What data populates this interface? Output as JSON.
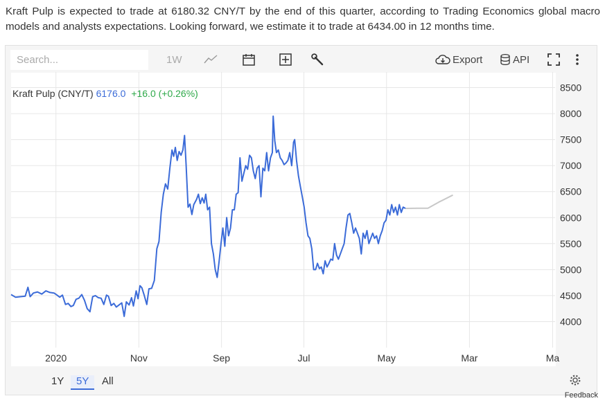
{
  "intro_text": "Kraft Pulp is expected to trade at 6180.32 CNY/T by the end of this quarter, according to Trading Economics global macro models and analysts expectations. Looking forward, we estimate it to trade at 6434.00 in 12 months time.",
  "toolbar": {
    "search_placeholder": "Search...",
    "range_label": "1W",
    "export_label": "Export",
    "api_label": "API"
  },
  "legend": {
    "name": "Kraft Pulp (CNY/T)",
    "last": "6176.0",
    "change": "+16.0 (+0.26%)"
  },
  "ranges": [
    "1Y",
    "5Y",
    "All"
  ],
  "active_range": "5Y",
  "feedback_label": "Feedback",
  "colors": {
    "series": "#3b6bd8",
    "forecast": "#c8c8c8",
    "positive": "#2fa94a",
    "grid": "#e6e6e6"
  },
  "chart_data": {
    "type": "line",
    "y_ticks": [
      "8500",
      "8000",
      "7500",
      "7000",
      "6500",
      "6000",
      "5500",
      "5000",
      "4500",
      "4000"
    ],
    "y_tick_values": [
      8500,
      8000,
      7500,
      7000,
      6500,
      6000,
      5500,
      5000,
      4500,
      4000
    ],
    "ylim": [
      3500,
      8800
    ],
    "x_tick_labels": [
      "2020",
      "Nov",
      "Sep",
      "Jul",
      "May",
      "Mar",
      "Ma"
    ],
    "x_tick_dates": [
      "2020-01-01",
      "2020-11-01",
      "2021-09-01",
      "2022-07-01",
      "2023-05-01",
      "2024-03-01",
      "2025-01-01"
    ],
    "xlim": [
      "2019-07-20",
      "2025-01-10"
    ],
    "grid": true,
    "series": [
      {
        "name": "Kraft Pulp (CNY/T)",
        "points": [
          [
            "2019-07-20",
            4520
          ],
          [
            "2019-08-05",
            4470
          ],
          [
            "2019-08-25",
            4480
          ],
          [
            "2019-09-10",
            4490
          ],
          [
            "2019-09-20",
            4660
          ],
          [
            "2019-09-28",
            4480
          ],
          [
            "2019-10-10",
            4550
          ],
          [
            "2019-10-25",
            4570
          ],
          [
            "2019-11-10",
            4530
          ],
          [
            "2019-11-25",
            4590
          ],
          [
            "2019-12-10",
            4560
          ],
          [
            "2019-12-25",
            4550
          ],
          [
            "2020-01-05",
            4510
          ],
          [
            "2020-01-15",
            4470
          ],
          [
            "2020-01-25",
            4510
          ],
          [
            "2020-02-05",
            4330
          ],
          [
            "2020-02-15",
            4350
          ],
          [
            "2020-02-25",
            4290
          ],
          [
            "2020-03-05",
            4310
          ],
          [
            "2020-03-15",
            4430
          ],
          [
            "2020-03-25",
            4450
          ],
          [
            "2020-04-05",
            4520
          ],
          [
            "2020-04-15",
            4410
          ],
          [
            "2020-04-25",
            4250
          ],
          [
            "2020-05-05",
            4190
          ],
          [
            "2020-05-15",
            4480
          ],
          [
            "2020-05-25",
            4500
          ],
          [
            "2020-06-05",
            4460
          ],
          [
            "2020-06-15",
            4450
          ],
          [
            "2020-06-25",
            4330
          ],
          [
            "2020-07-05",
            4510
          ],
          [
            "2020-07-12",
            4490
          ],
          [
            "2020-07-22",
            4310
          ],
          [
            "2020-08-01",
            4350
          ],
          [
            "2020-08-10",
            4280
          ],
          [
            "2020-08-20",
            4320
          ],
          [
            "2020-08-30",
            4360
          ],
          [
            "2020-09-08",
            4100
          ],
          [
            "2020-09-16",
            4380
          ],
          [
            "2020-09-26",
            4320
          ],
          [
            "2020-10-05",
            4460
          ],
          [
            "2020-10-12",
            4300
          ],
          [
            "2020-10-22",
            4590
          ],
          [
            "2020-10-29",
            4440
          ],
          [
            "2020-11-05",
            4690
          ],
          [
            "2020-11-12",
            4650
          ],
          [
            "2020-11-20",
            4520
          ],
          [
            "2020-11-30",
            4330
          ],
          [
            "2020-12-08",
            4630
          ],
          [
            "2020-12-18",
            4640
          ],
          [
            "2020-12-28",
            4790
          ],
          [
            "2021-01-06",
            5400
          ],
          [
            "2021-01-14",
            5540
          ],
          [
            "2021-01-22",
            6100
          ],
          [
            "2021-01-30",
            6450
          ],
          [
            "2021-02-07",
            6650
          ],
          [
            "2021-02-15",
            6550
          ],
          [
            "2021-02-23",
            6950
          ],
          [
            "2021-03-03",
            7300
          ],
          [
            "2021-03-09",
            7180
          ],
          [
            "2021-03-15",
            7350
          ],
          [
            "2021-03-22",
            7100
          ],
          [
            "2021-03-29",
            7270
          ],
          [
            "2021-04-05",
            7200
          ],
          [
            "2021-04-12",
            7300
          ],
          [
            "2021-04-18",
            7580
          ],
          [
            "2021-04-24",
            7000
          ],
          [
            "2021-05-01",
            6200
          ],
          [
            "2021-05-08",
            6260
          ],
          [
            "2021-05-15",
            6060
          ],
          [
            "2021-05-22",
            6250
          ],
          [
            "2021-06-01",
            6350
          ],
          [
            "2021-06-08",
            6450
          ],
          [
            "2021-06-15",
            6270
          ],
          [
            "2021-06-22",
            6380
          ],
          [
            "2021-06-29",
            6280
          ],
          [
            "2021-07-05",
            6450
          ],
          [
            "2021-07-12",
            6150
          ],
          [
            "2021-07-19",
            6200
          ],
          [
            "2021-07-26",
            5500
          ],
          [
            "2021-08-02",
            5300
          ],
          [
            "2021-08-09",
            5000
          ],
          [
            "2021-08-16",
            4850
          ],
          [
            "2021-08-23",
            5150
          ],
          [
            "2021-08-30",
            5500
          ],
          [
            "2021-09-06",
            5800
          ],
          [
            "2021-09-13",
            5450
          ],
          [
            "2021-09-20",
            6000
          ],
          [
            "2021-09-27",
            5650
          ],
          [
            "2021-10-04",
            5800
          ],
          [
            "2021-10-11",
            6150
          ],
          [
            "2021-10-18",
            6150
          ],
          [
            "2021-10-25",
            6450
          ],
          [
            "2021-11-01",
            6480
          ],
          [
            "2021-11-08",
            7150
          ],
          [
            "2021-11-15",
            6700
          ],
          [
            "2021-11-22",
            6850
          ],
          [
            "2021-11-29",
            7000
          ],
          [
            "2021-12-06",
            6930
          ],
          [
            "2021-12-13",
            7200
          ],
          [
            "2021-12-20",
            7150
          ],
          [
            "2021-12-27",
            6900
          ],
          [
            "2022-01-03",
            6750
          ],
          [
            "2022-01-10",
            6950
          ],
          [
            "2022-01-17",
            7000
          ],
          [
            "2022-01-24",
            6400
          ],
          [
            "2022-01-31",
            6950
          ],
          [
            "2022-02-07",
            6900
          ],
          [
            "2022-02-14",
            7250
          ],
          [
            "2022-02-21",
            6900
          ],
          [
            "2022-02-28",
            7150
          ],
          [
            "2022-03-07",
            7250
          ],
          [
            "2022-03-10",
            7950
          ],
          [
            "2022-03-16",
            7480
          ],
          [
            "2022-03-22",
            7250
          ],
          [
            "2022-03-29",
            7300
          ],
          [
            "2022-04-05",
            7150
          ],
          [
            "2022-04-12",
            7100
          ],
          [
            "2022-04-19",
            7020
          ],
          [
            "2022-04-26",
            7050
          ],
          [
            "2022-05-03",
            7100
          ],
          [
            "2022-05-10",
            7250
          ],
          [
            "2022-05-17",
            7000
          ],
          [
            "2022-05-24",
            7450
          ],
          [
            "2022-05-28",
            7500
          ],
          [
            "2022-06-04",
            7100
          ],
          [
            "2022-06-11",
            6800
          ],
          [
            "2022-06-18",
            6600
          ],
          [
            "2022-06-25",
            6400
          ],
          [
            "2022-07-02",
            6200
          ],
          [
            "2022-07-09",
            5900
          ],
          [
            "2022-07-16",
            5650
          ],
          [
            "2022-07-23",
            5600
          ],
          [
            "2022-07-30",
            5400
          ],
          [
            "2022-08-06",
            5000
          ],
          [
            "2022-08-13",
            5000
          ],
          [
            "2022-08-20",
            5120
          ],
          [
            "2022-08-27",
            5020
          ],
          [
            "2022-09-03",
            5050
          ],
          [
            "2022-09-10",
            4920
          ],
          [
            "2022-09-17",
            5170
          ],
          [
            "2022-09-24",
            5050
          ],
          [
            "2022-10-01",
            5120
          ],
          [
            "2022-10-08",
            5200
          ],
          [
            "2022-10-15",
            5180
          ],
          [
            "2022-10-22",
            5500
          ],
          [
            "2022-10-29",
            5280
          ],
          [
            "2022-11-05",
            5200
          ],
          [
            "2022-11-12",
            5300
          ],
          [
            "2022-11-19",
            5400
          ],
          [
            "2022-11-26",
            5500
          ],
          [
            "2022-12-03",
            5800
          ],
          [
            "2022-12-10",
            6050
          ],
          [
            "2022-12-17",
            6080
          ],
          [
            "2022-12-24",
            5900
          ],
          [
            "2022-12-31",
            5700
          ],
          [
            "2023-01-07",
            5800
          ],
          [
            "2023-01-14",
            5700
          ],
          [
            "2023-01-21",
            5600
          ],
          [
            "2023-01-28",
            5300
          ],
          [
            "2023-02-04",
            5700
          ],
          [
            "2023-02-11",
            5600
          ],
          [
            "2023-02-18",
            5750
          ],
          [
            "2023-02-25",
            5500
          ],
          [
            "2023-03-04",
            5600
          ],
          [
            "2023-03-11",
            5700
          ],
          [
            "2023-03-18",
            5600
          ],
          [
            "2023-03-25",
            5650
          ],
          [
            "2023-04-01",
            5500
          ],
          [
            "2023-04-08",
            5650
          ],
          [
            "2023-04-15",
            5750
          ],
          [
            "2023-04-22",
            5900
          ],
          [
            "2023-04-29",
            5950
          ],
          [
            "2023-05-06",
            6150
          ],
          [
            "2023-05-13",
            6050
          ],
          [
            "2023-05-20",
            6250
          ],
          [
            "2023-05-27",
            6100
          ],
          [
            "2023-06-03",
            6200
          ],
          [
            "2023-06-10",
            6050
          ],
          [
            "2023-06-17",
            6250
          ],
          [
            "2023-06-24",
            6100
          ],
          [
            "2023-07-01",
            6200
          ],
          [
            "2023-07-10",
            6176
          ]
        ]
      }
    ],
    "forecast": [
      [
        "2023-07-10",
        6176
      ],
      [
        "2023-08-20",
        6180
      ],
      [
        "2023-09-30",
        6180
      ],
      [
        "2023-11-10",
        6300
      ],
      [
        "2023-12-31",
        6434
      ]
    ]
  }
}
